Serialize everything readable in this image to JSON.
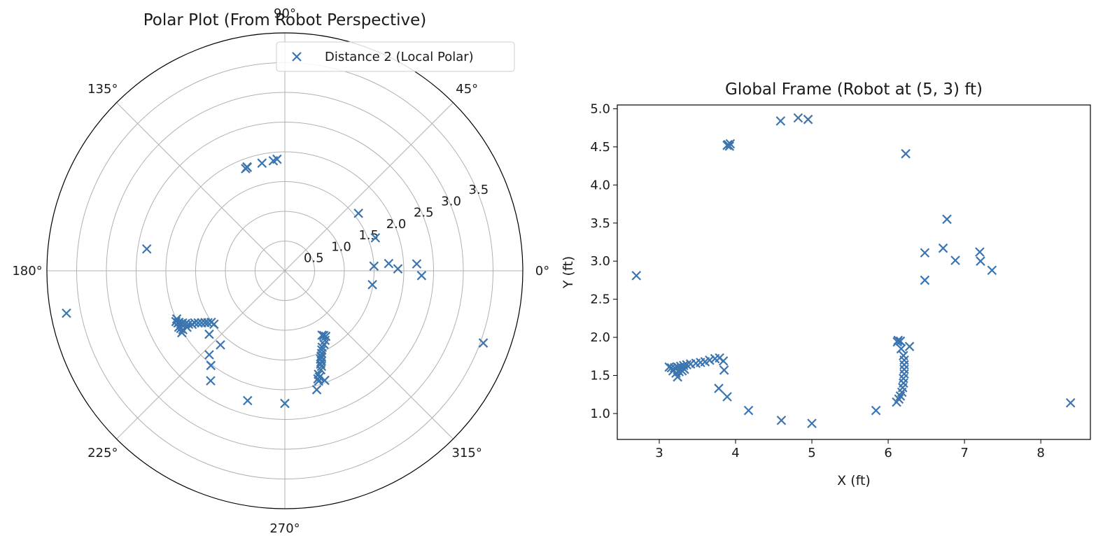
{
  "chart_data": [
    {
      "type": "scatter",
      "projection": "polar",
      "title": "Polar Plot (From Robot Perspective)",
      "marker": "x",
      "color": "#3b75af",
      "rlim": [
        0,
        4.0
      ],
      "r_ticks": [
        "0.5",
        "1.0",
        "1.5",
        "2.0",
        "2.5",
        "3.0",
        "3.5"
      ],
      "theta_ticks": [
        "0°",
        "45°",
        "90°",
        "135°",
        "180°",
        "225°",
        "270°",
        "315°"
      ],
      "grid": true,
      "legend": {
        "placement": "top-right",
        "entries": [
          "Distance 2 (Local Polar)"
        ]
      },
      "series": [
        {
          "name": "Distance 2 (Local Polar)",
          "points": [
            {
              "theta_deg": 110,
              "r": 1.85
            },
            {
              "theta_deg": 110,
              "r": 1.86
            },
            {
              "theta_deg": 111,
              "r": 1.84
            },
            {
              "theta_deg": 102,
              "r": 1.85
            },
            {
              "theta_deg": 96,
              "r": 1.86
            },
            {
              "theta_deg": 94,
              "r": 1.88
            },
            {
              "theta_deg": 38,
              "r": 1.57
            },
            {
              "theta_deg": 20,
              "r": 1.62
            },
            {
              "theta_deg": 3,
              "r": 1.5
            },
            {
              "theta_deg": 4,
              "r": 1.75
            },
            {
              "theta_deg": 1,
              "r": 1.9
            },
            {
              "theta_deg": 3,
              "r": 2.22
            },
            {
              "theta_deg": -2,
              "r": 2.3
            },
            {
              "theta_deg": -9,
              "r": 1.49
            },
            {
              "theta_deg": 171,
              "r": 2.35
            },
            {
              "theta_deg": 191,
              "r": 3.74
            },
            {
              "theta_deg": -60,
              "r": 1.25
            },
            {
              "theta_deg": -59,
              "r": 1.27
            },
            {
              "theta_deg": -58,
              "r": 1.3
            },
            {
              "theta_deg": -60,
              "r": 1.35
            },
            {
              "theta_deg": -62,
              "r": 1.4
            },
            {
              "theta_deg": -64,
              "r": 1.43
            },
            {
              "theta_deg": -65,
              "r": 1.47
            },
            {
              "theta_deg": -66,
              "r": 1.52
            },
            {
              "theta_deg": -67,
              "r": 1.56
            },
            {
              "theta_deg": -68,
              "r": 1.6
            },
            {
              "theta_deg": -68,
              "r": 1.64
            },
            {
              "theta_deg": -69,
              "r": 1.68
            },
            {
              "theta_deg": -69,
              "r": 1.72
            },
            {
              "theta_deg": -70,
              "r": 1.77
            },
            {
              "theta_deg": -72,
              "r": 1.83
            },
            {
              "theta_deg": -73,
              "r": 1.9
            },
            {
              "theta_deg": -70,
              "r": 1.96
            },
            {
              "theta_deg": -73,
              "r": 1.94
            },
            {
              "theta_deg": -72,
              "r": 1.88
            },
            {
              "theta_deg": -67,
              "r": 1.58
            },
            {
              "theta_deg": -75,
              "r": 2.07
            },
            {
              "theta_deg": -90,
              "r": 2.23
            },
            {
              "theta_deg": -106,
              "r": 2.27
            },
            {
              "theta_deg": -124,
              "r": 2.23
            },
            {
              "theta_deg": -128,
              "r": 2.02
            },
            {
              "theta_deg": -132,
              "r": 1.9
            },
            {
              "theta_deg": -131,
              "r": 1.65
            },
            {
              "theta_deg": -140,
              "r": 1.66
            },
            {
              "theta_deg": -143,
              "r": 1.49
            },
            {
              "theta_deg": -145,
              "r": 1.51
            },
            {
              "theta_deg": -146,
              "r": 1.56
            },
            {
              "theta_deg": -147,
              "r": 1.6
            },
            {
              "theta_deg": -148,
              "r": 1.65
            },
            {
              "theta_deg": -149,
              "r": 1.7
            },
            {
              "theta_deg": -150,
              "r": 1.75
            },
            {
              "theta_deg": -150,
              "r": 1.8
            },
            {
              "theta_deg": -151,
              "r": 1.85
            },
            {
              "theta_deg": -152,
              "r": 1.89
            },
            {
              "theta_deg": -153,
              "r": 1.93
            },
            {
              "theta_deg": -153,
              "r": 1.96
            },
            {
              "theta_deg": -154,
              "r": 1.98
            },
            {
              "theta_deg": -154,
              "r": 2.0
            },
            {
              "theta_deg": -155,
              "r": 2.02
            },
            {
              "theta_deg": -152,
              "r": 2.02
            },
            {
              "theta_deg": -151,
              "r": 2.0
            },
            {
              "theta_deg": -150,
              "r": 1.98
            },
            {
              "theta_deg": -150,
              "r": 1.9
            },
            {
              "theta_deg": -156,
              "r": 1.99
            },
            {
              "theta_deg": -149,
              "r": 2.02
            },
            {
              "theta_deg": -20,
              "r": 3.55
            }
          ]
        }
      ]
    },
    {
      "type": "scatter",
      "title": "Global Frame (Robot at (5, 3) ft)",
      "xlabel": "X (ft)",
      "ylabel": "Y (ft)",
      "xlim": [
        2.45,
        8.65
      ],
      "ylim": [
        0.66,
        5.05
      ],
      "x_ticks": [
        3,
        4,
        5,
        6,
        7,
        8
      ],
      "y_ticks": [
        1.0,
        1.5,
        2.0,
        2.5,
        3.0,
        3.5,
        4.0,
        4.5,
        5.0
      ],
      "grid": false,
      "marker": "x",
      "color": "#3b75af",
      "series": [
        {
          "points": [
            {
              "x": 3.9,
              "y": 4.53
            },
            {
              "x": 3.92,
              "y": 4.51
            },
            {
              "x": 3.89,
              "y": 4.52
            },
            {
              "x": 3.93,
              "y": 4.54
            },
            {
              "x": 4.59,
              "y": 4.84
            },
            {
              "x": 4.82,
              "y": 4.88
            },
            {
              "x": 4.95,
              "y": 4.86
            },
            {
              "x": 6.23,
              "y": 4.41
            },
            {
              "x": 6.77,
              "y": 3.55
            },
            {
              "x": 6.48,
              "y": 3.11
            },
            {
              "x": 6.72,
              "y": 3.17
            },
            {
              "x": 6.88,
              "y": 3.01
            },
            {
              "x": 6.48,
              "y": 2.75
            },
            {
              "x": 7.2,
              "y": 3.12
            },
            {
              "x": 7.21,
              "y": 3.0
            },
            {
              "x": 7.36,
              "y": 2.88
            },
            {
              "x": 2.7,
              "y": 2.81
            },
            {
              "x": 8.39,
              "y": 1.14
            },
            {
              "x": 6.13,
              "y": 1.96
            },
            {
              "x": 6.16,
              "y": 1.95
            },
            {
              "x": 6.12,
              "y": 1.94
            },
            {
              "x": 6.28,
              "y": 1.88
            },
            {
              "x": 6.17,
              "y": 1.85
            },
            {
              "x": 6.2,
              "y": 1.76
            },
            {
              "x": 6.21,
              "y": 1.7
            },
            {
              "x": 6.21,
              "y": 1.64
            },
            {
              "x": 6.21,
              "y": 1.58
            },
            {
              "x": 6.21,
              "y": 1.52
            },
            {
              "x": 6.2,
              "y": 1.46
            },
            {
              "x": 6.2,
              "y": 1.4
            },
            {
              "x": 6.19,
              "y": 1.34
            },
            {
              "x": 6.18,
              "y": 1.28
            },
            {
              "x": 6.16,
              "y": 1.23
            },
            {
              "x": 6.14,
              "y": 1.19
            },
            {
              "x": 6.11,
              "y": 1.15
            },
            {
              "x": 5.84,
              "y": 1.04
            },
            {
              "x": 5.0,
              "y": 0.87
            },
            {
              "x": 4.6,
              "y": 0.91
            },
            {
              "x": 4.17,
              "y": 1.04
            },
            {
              "x": 3.89,
              "y": 1.22
            },
            {
              "x": 3.78,
              "y": 1.33
            },
            {
              "x": 3.85,
              "y": 1.57
            },
            {
              "x": 3.84,
              "y": 1.69
            },
            {
              "x": 3.79,
              "y": 1.73
            },
            {
              "x": 3.73,
              "y": 1.72
            },
            {
              "x": 3.66,
              "y": 1.7
            },
            {
              "x": 3.6,
              "y": 1.68
            },
            {
              "x": 3.54,
              "y": 1.67
            },
            {
              "x": 3.48,
              "y": 1.66
            },
            {
              "x": 3.41,
              "y": 1.65
            },
            {
              "x": 3.36,
              "y": 1.64
            },
            {
              "x": 3.32,
              "y": 1.63
            },
            {
              "x": 3.28,
              "y": 1.62
            },
            {
              "x": 3.24,
              "y": 1.61
            },
            {
              "x": 3.2,
              "y": 1.6
            },
            {
              "x": 3.16,
              "y": 1.6
            },
            {
              "x": 3.13,
              "y": 1.61
            },
            {
              "x": 3.18,
              "y": 1.56
            },
            {
              "x": 3.22,
              "y": 1.53
            },
            {
              "x": 3.26,
              "y": 1.55
            },
            {
              "x": 3.3,
              "y": 1.56
            },
            {
              "x": 3.24,
              "y": 1.48
            },
            {
              "x": 3.33,
              "y": 1.58
            }
          ]
        }
      ]
    }
  ]
}
